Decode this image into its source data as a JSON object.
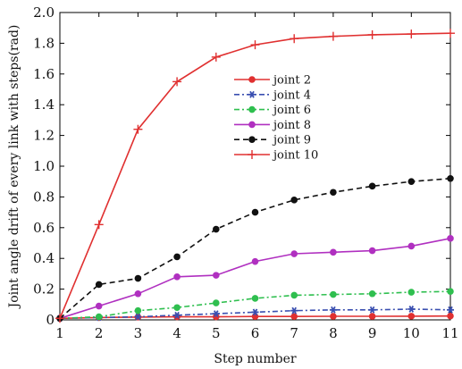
{
  "chart_data": {
    "type": "line",
    "xlabel": "Step number",
    "ylabel": "Joint angle drift of every link with steps(rad)",
    "xlim": [
      1,
      11
    ],
    "ylim": [
      0,
      2.0
    ],
    "xticks": [
      1,
      2,
      3,
      4,
      5,
      6,
      7,
      8,
      9,
      10,
      11
    ],
    "yticks": [
      "0",
      "0.2",
      "0.4",
      "0.6",
      "0.8",
      "1.0",
      "1.2",
      "1.4",
      "1.6",
      "1.8",
      "2.0"
    ],
    "grid": false,
    "legend_position": "upper-middle",
    "x": [
      1,
      2,
      3,
      4,
      5,
      6,
      7,
      8,
      9,
      10,
      11
    ],
    "series": [
      {
        "name": "joint 2",
        "color": "#e03030",
        "dash": "solid",
        "marker": "dot",
        "values": [
          0.01,
          0.015,
          0.018,
          0.02,
          0.02,
          0.022,
          0.022,
          0.023,
          0.023,
          0.024,
          0.025
        ]
      },
      {
        "name": "joint 4",
        "color": "#3a4fb0",
        "dash": "dashdot",
        "marker": "star",
        "values": [
          0.01,
          0.015,
          0.02,
          0.03,
          0.04,
          0.05,
          0.06,
          0.065,
          0.065,
          0.07,
          0.065
        ]
      },
      {
        "name": "joint 6",
        "color": "#2fbf4f",
        "dash": "dashdot",
        "marker": "dot",
        "values": [
          0.01,
          0.02,
          0.06,
          0.08,
          0.11,
          0.14,
          0.16,
          0.165,
          0.17,
          0.18,
          0.185
        ]
      },
      {
        "name": "joint 8",
        "color": "#b030c0",
        "dash": "solid",
        "marker": "dot",
        "values": [
          0.01,
          0.09,
          0.17,
          0.28,
          0.29,
          0.38,
          0.43,
          0.44,
          0.45,
          0.48,
          0.53
        ]
      },
      {
        "name": "joint 9",
        "color": "#111111",
        "dash": "dashed",
        "marker": "dot",
        "values": [
          0.01,
          0.23,
          0.27,
          0.41,
          0.59,
          0.7,
          0.78,
          0.83,
          0.87,
          0.9,
          0.92
        ]
      },
      {
        "name": "joint 10",
        "color": "#e03030",
        "dash": "solid",
        "marker": "plus",
        "values": [
          0.01,
          0.62,
          1.24,
          1.55,
          1.71,
          1.79,
          1.83,
          1.845,
          1.855,
          1.86,
          1.865
        ]
      }
    ]
  }
}
